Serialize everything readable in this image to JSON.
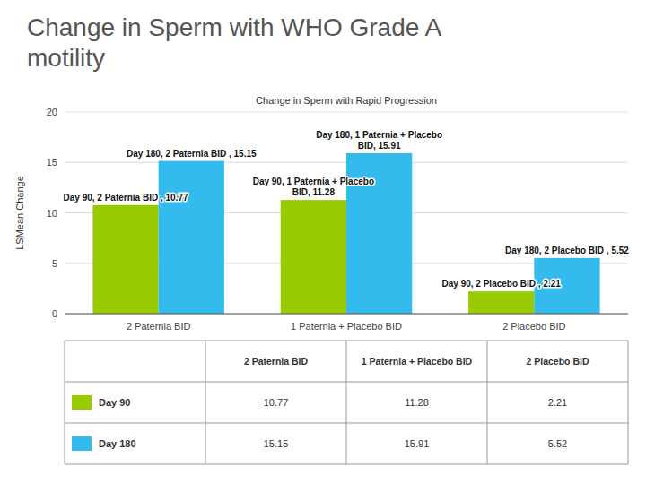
{
  "chart_data": {
    "type": "bar",
    "title": "Change in Sperm with WHO Grade A\nmotility",
    "subtitle": "Change in Sperm with Rapid Progression",
    "categories": [
      "2 Paternia BID",
      "1 Paternia + Placebo BID",
      "2 Placebo BID"
    ],
    "series": [
      {
        "name": "Day 90",
        "color": "#99cc00",
        "values": [
          10.77,
          11.28,
          2.21
        ]
      },
      {
        "name": "Day 180",
        "color": "#33bbee",
        "values": [
          15.15,
          15.91,
          5.52
        ]
      }
    ],
    "ylim": [
      0,
      20
    ],
    "yticks": [
      0,
      5,
      10,
      15,
      20
    ],
    "ylabel": "LSMean Change",
    "grid": true,
    "legend": "bottom",
    "annotations": [
      "Day 90, 2 Paternia BID , 10.77",
      "Day 180, 2 Paternia BID , 15.15",
      "Day 90, 1 Paternia + Placebo\nBID, 11.28",
      "Day 180, 1 Paternia + Placebo\nBID, 15.91",
      "Day 90, 2 Placebo BID , 2.21",
      "Day 180, 2 Placebo BID , 5.52"
    ]
  }
}
